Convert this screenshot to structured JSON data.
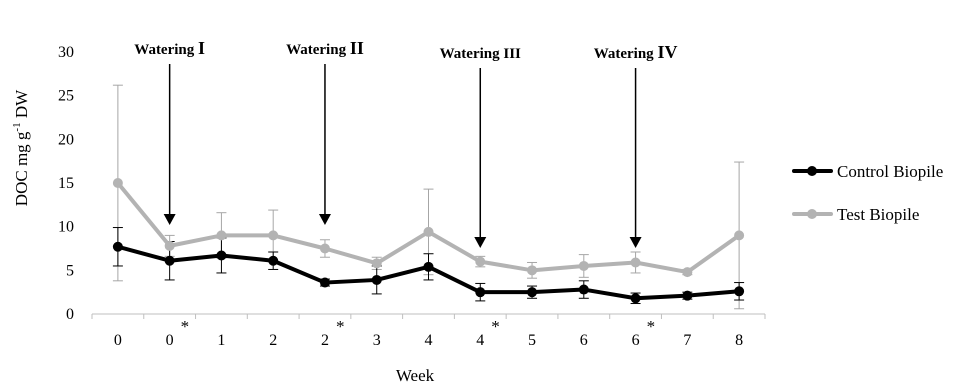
{
  "chart_data": {
    "type": "line",
    "xlabel": "Week",
    "ylabel": "DOC mg g-1 DW",
    "ylabel_parts": {
      "main": "DOC mg g",
      "sup": "-1",
      "tail": " DW"
    },
    "ylim": [
      0,
      30
    ],
    "yticks": [
      "0",
      "5",
      "10",
      "15",
      "20",
      "25",
      "30"
    ],
    "categories": [
      "0",
      "0",
      "1",
      "2",
      "2",
      "3",
      "4",
      "4",
      "5",
      "6",
      "6",
      "7",
      "8"
    ],
    "starred": [
      false,
      true,
      false,
      false,
      true,
      false,
      false,
      true,
      false,
      false,
      true,
      false,
      false
    ],
    "star_symbol": "*",
    "grid": false,
    "legend_position": "right",
    "series": [
      {
        "name": "Control Biopile",
        "color": "#000000",
        "values": [
          7.7,
          6.1,
          6.7,
          6.1,
          3.6,
          3.9,
          5.4,
          2.5,
          2.5,
          2.8,
          1.8,
          2.1,
          2.6
        ],
        "error": [
          2.2,
          2.2,
          2.0,
          1.0,
          0.4,
          1.6,
          1.5,
          1.0,
          0.7,
          1.0,
          0.6,
          0.4,
          1.0
        ]
      },
      {
        "name": "Test Biopile",
        "color": "#b3b3b3",
        "values": [
          15.0,
          7.8,
          9.0,
          9.0,
          7.5,
          5.8,
          9.4,
          6.0,
          5.0,
          5.5,
          5.9,
          4.8,
          9.0
        ],
        "error": [
          11.2,
          1.2,
          2.6,
          2.9,
          1.0,
          0.7,
          4.9,
          0.6,
          0.9,
          1.3,
          1.2,
          0.3,
          8.4
        ]
      }
    ],
    "annotations": [
      {
        "label": "Watering",
        "numeral": "I",
        "category_index": 1
      },
      {
        "label": "Watering",
        "numeral": "II",
        "category_index": 4
      },
      {
        "label": "Watering",
        "numeral": "III",
        "category_index": 7
      },
      {
        "label": "Watering",
        "numeral": "IV",
        "category_index": 10
      }
    ]
  }
}
